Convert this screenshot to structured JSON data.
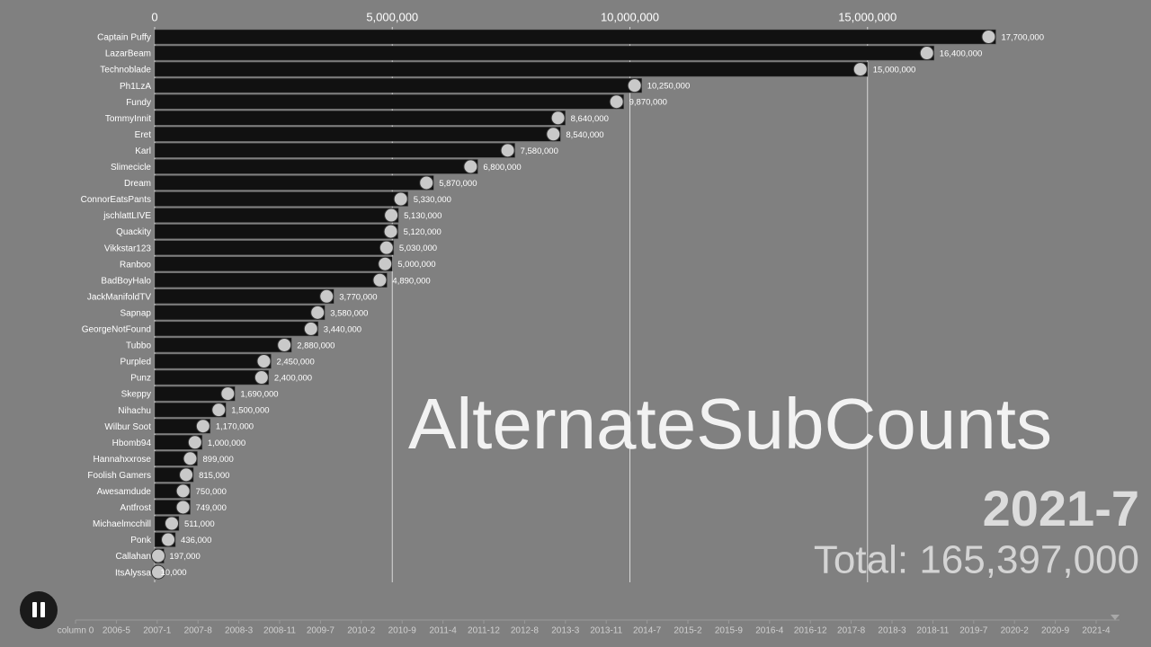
{
  "chart_data": {
    "type": "hbar",
    "categories": [
      "Captain Puffy",
      "LazarBeam",
      "Technoblade",
      "Ph1LzA",
      "Fundy",
      "TommyInnit",
      "Eret",
      "Karl",
      "Slimecicle",
      "Dream",
      "ConnorEatsPants",
      "jschlattLIVE",
      "Quackity",
      "Vikkstar123",
      "Ranboo",
      "BadBoyHalo",
      "JackManifoldTV",
      "Sapnap",
      "GeorgeNotFound",
      "Tubbo",
      "Purpled",
      "Punz",
      "Skeppy",
      "Nihachu",
      "Wilbur Soot",
      "Hbomb94",
      "Hannahxxrose",
      "Foolish Gamers",
      "Awesamdude",
      "Antfrost",
      "Michaelmcchill",
      "Ponk",
      "Callahan",
      "ItsAlyssa"
    ],
    "values": [
      17700000,
      16400000,
      15000000,
      10250000,
      9870000,
      8640000,
      8540000,
      7580000,
      6800000,
      5870000,
      5330000,
      5130000,
      5120000,
      5030000,
      5000000,
      4890000,
      3770000,
      3580000,
      3440000,
      2880000,
      2450000,
      2400000,
      1690000,
      1500000,
      1170000,
      1000000,
      899000,
      815000,
      750000,
      749000,
      511000,
      436000,
      197000,
      10000
    ],
    "value_labels": [
      "17,700,000",
      "16,400,000",
      "15,000,000",
      "10,250,000",
      "9,870,000",
      "8,640,000",
      "8,540,000",
      "7,580,000",
      "6,800,000",
      "5,870,000",
      "5,330,000",
      "5,130,000",
      "5,120,000",
      "5,030,000",
      "5,000,000",
      "4,890,000",
      "3,770,000",
      "3,580,000",
      "3,440,000",
      "2,880,000",
      "2,450,000",
      "2,400,000",
      "1,690,000",
      "1,500,000",
      "1,170,000",
      "1,000,000",
      "899,000",
      "815,000",
      "750,000",
      "749,000",
      "511,000",
      "436,000",
      "197,000",
      "10,000"
    ],
    "color": "#111111",
    "xlim": [
      0,
      20000000
    ],
    "xticks": [
      0,
      {
        "value": 5000000,
        "label": "5,000,000"
      },
      {
        "value": 10000000,
        "label": "10,000,000"
      },
      {
        "value": 15000000,
        "label": "15,000,000"
      }
    ],
    "grid": true,
    "watermark": "AlternateSubCounts",
    "date_label": "2021-7",
    "total_label": "Total: 165,397,000",
    "timeline": [
      "column 0",
      "2006-5",
      "2007-1",
      "2007-8",
      "2008-3",
      "2008-11",
      "2009-7",
      "2010-2",
      "2010-9",
      "2011-4",
      "2011-12",
      "2012-8",
      "2013-3",
      "2013-11",
      "2014-7",
      "2015-2",
      "2015-9",
      "2016-4",
      "2016-12",
      "2017-8",
      "2018-3",
      "2018-11",
      "2019-7",
      "2020-2",
      "2020-9",
      "2021-4"
    ]
  }
}
